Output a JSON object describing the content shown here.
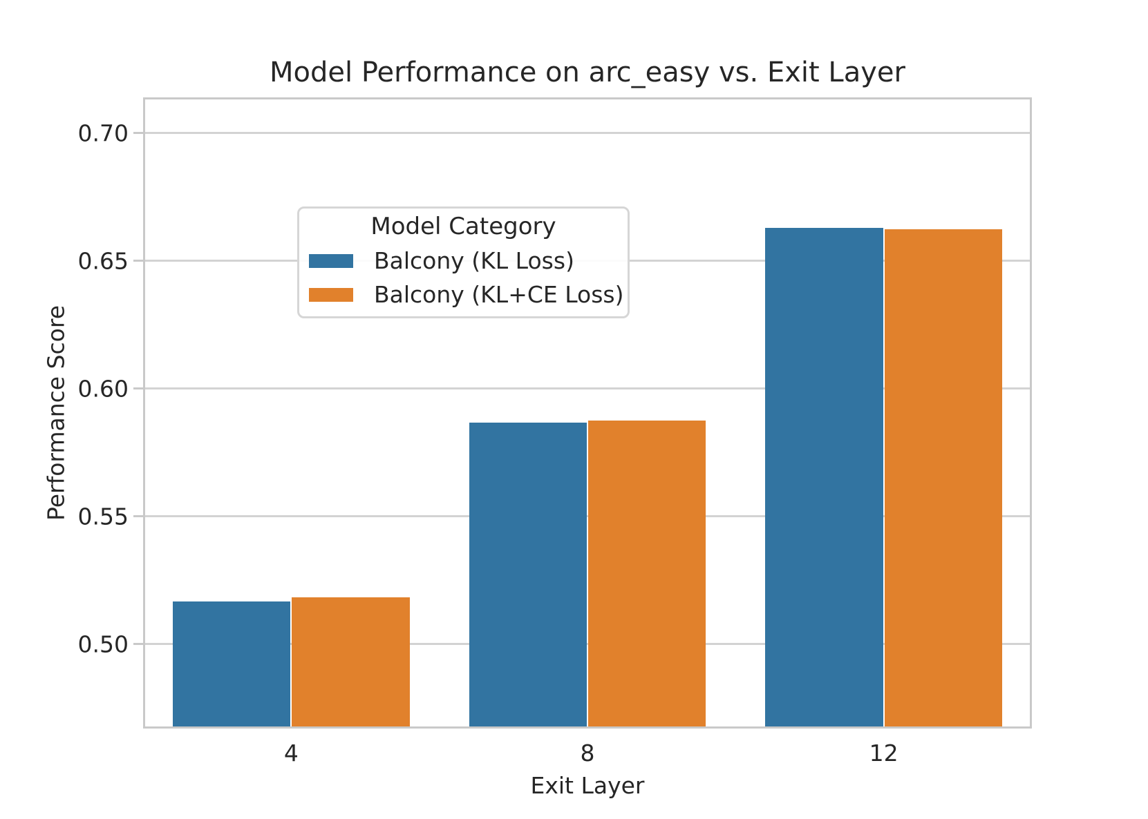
{
  "chart_data": {
    "type": "bar",
    "title": "Model Performance on arc_easy vs. Exit Layer",
    "xlabel": "Exit Layer",
    "ylabel": "Performance Score",
    "categories": [
      "4",
      "8",
      "12"
    ],
    "series": [
      {
        "name": "Balcony (KL Loss)",
        "color": "#3274a1",
        "values": [
          0.5168,
          0.5868,
          0.6629
        ]
      },
      {
        "name": "Balcony (KL+CE Loss)",
        "color": "#e1812c",
        "values": [
          0.5183,
          0.5874,
          0.6625
        ]
      }
    ],
    "legend": {
      "title": "Model Category",
      "position": "upper-left",
      "entries": [
        "Balcony (KL Loss)",
        "Balcony (KL+CE Loss)"
      ]
    },
    "ylim": [
      0.467,
      0.714
    ],
    "yticks": [
      0.5,
      0.55,
      0.6,
      0.65,
      0.7
    ],
    "ytick_labels": [
      "0.50",
      "0.55",
      "0.60",
      "0.65",
      "0.70"
    ],
    "grid": "horizontal",
    "colors": {
      "grid": "#d3d3d3",
      "spine": "#c9c9c9",
      "text": "#262626",
      "background": "#ffffff"
    }
  }
}
